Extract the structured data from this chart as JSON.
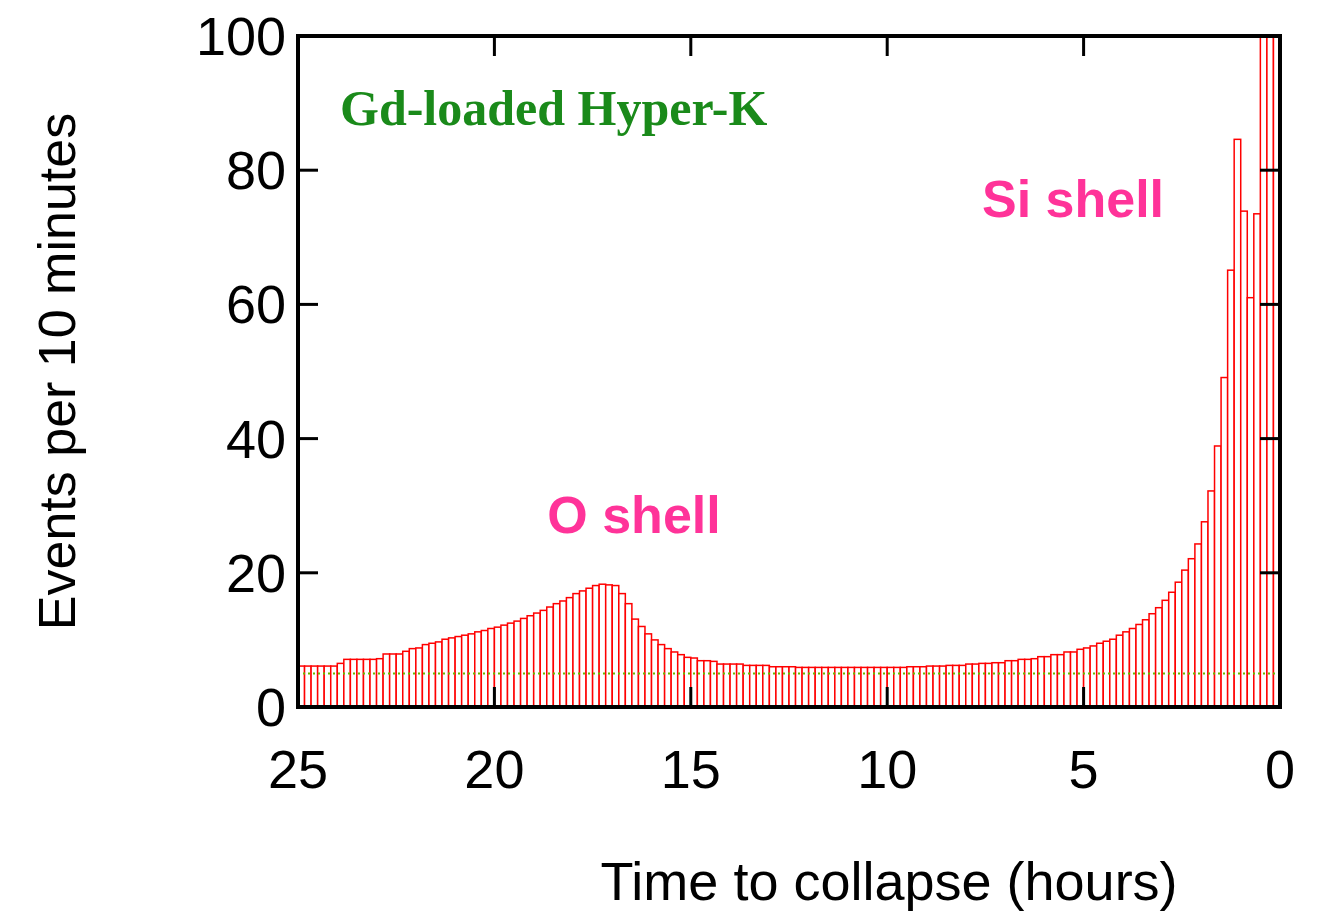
{
  "chart_data": {
    "type": "histogram",
    "xlabel": "Time to collapse (hours)",
    "ylabel": "Events per 10 minutes",
    "annotations": [
      "Gd-loaded Hyper-K",
      "O shell",
      "Si shell"
    ],
    "color": "#ff0000",
    "bins": [
      25,
      24.8333,
      24.6667,
      24.5,
      24.3333,
      24.1667,
      24,
      23.8333,
      23.6667,
      23.5,
      23.3333,
      23.1667,
      23,
      22.8333,
      22.6667,
      22.5,
      22.3333,
      22.1667,
      22,
      21.8333,
      21.6667,
      21.5,
      21.3333,
      21.1667,
      21,
      20.8333,
      20.6667,
      20.5,
      20.3333,
      20.1667,
      20,
      19.8333,
      19.6667,
      19.5,
      19.3333,
      19.1667,
      19,
      18.8333,
      18.6667,
      18.5,
      18.3333,
      18.1667,
      18,
      17.8333,
      17.6667,
      17.5,
      17.3333,
      17.1667,
      17,
      16.8333,
      16.6667,
      16.5,
      16.3333,
      16.1667,
      16,
      15.8333,
      15.6667,
      15.5,
      15.3333,
      15.1667,
      15,
      14.8333,
      14.6667,
      14.5,
      14.3333,
      14.1667,
      14,
      13.8333,
      13.6667,
      13.5,
      13.3333,
      13.1667,
      13,
      12.8333,
      12.6667,
      12.5,
      12.3333,
      12.1667,
      12,
      11.8333,
      11.6667,
      11.5,
      11.3333,
      11.1667,
      11,
      10.8333,
      10.6667,
      10.5,
      10.3333,
      10.1667,
      10,
      9.8333,
      9.6667,
      9.5,
      9.3333,
      9.1667,
      9,
      8.8333,
      8.6667,
      8.5,
      8.3333,
      8.1667,
      8,
      7.8333,
      7.6667,
      7.5,
      7.3333,
      7.1667,
      7,
      6.8333,
      6.6667,
      6.5,
      6.3333,
      6.1667,
      6,
      5.8333,
      5.6667,
      5.5,
      5.3333,
      5.1667,
      5,
      4.8333,
      4.6667,
      4.5,
      4.3333,
      4.1667,
      4,
      3.8333,
      3.6667,
      3.5,
      3.3333,
      3.1667,
      3,
      2.8333,
      2.6667,
      2.5,
      2.3333,
      2.1667,
      2,
      1.8333,
      1.6667,
      1.5,
      1.3333,
      1.1667,
      1,
      0.8333,
      0.6667,
      0.5,
      0.3333,
      0.1667,
      0
    ],
    "values": [
      6.1,
      6.1,
      6.1,
      6.1,
      6.1,
      6.1,
      6.5,
      7.1,
      7.1,
      7.1,
      7.1,
      7.1,
      7.2,
      7.9,
      7.9,
      7.9,
      8.3,
      8.7,
      8.8,
      9.3,
      9.5,
      9.7,
      10.1,
      10.3,
      10.5,
      10.7,
      10.9,
      11.2,
      11.4,
      11.7,
      11.9,
      12.2,
      12.5,
      12.8,
      13.2,
      13.6,
      14.0,
      14.4,
      14.9,
      15.4,
      15.8,
      16.3,
      16.9,
      17.3,
      17.7,
      18.1,
      18.3,
      18.2,
      18.1,
      16.9,
      15.4,
      13.1,
      12.0,
      10.9,
      10.0,
      9.3,
      8.7,
      8.2,
      7.8,
      7.4,
      7.3,
      6.9,
      6.9,
      6.8,
      6.4,
      6.4,
      6.4,
      6.4,
      6.2,
      6.2,
      6.2,
      6.2,
      6.0,
      6.0,
      6.0,
      6.0,
      5.9,
      5.9,
      5.9,
      5.9,
      5.9,
      5.9,
      5.9,
      5.9,
      5.9,
      5.9,
      5.9,
      5.9,
      5.9,
      5.9,
      5.9,
      5.9,
      5.9,
      6.0,
      6.0,
      6.0,
      6.1,
      6.1,
      6.1,
      6.2,
      6.2,
      6.2,
      6.4,
      6.4,
      6.5,
      6.5,
      6.6,
      6.6,
      6.9,
      6.9,
      7.1,
      7.1,
      7.2,
      7.5,
      7.5,
      7.8,
      7.8,
      8.2,
      8.2,
      8.6,
      8.8,
      9.1,
      9.5,
      9.8,
      10.1,
      10.7,
      11.2,
      11.7,
      12.3,
      13.0,
      13.9,
      14.8,
      15.9,
      17.1,
      18.6,
      20.4,
      22.1,
      24.3,
      27.6,
      32.2,
      38.9,
      49.1,
      65.1,
      84.6,
      73.9,
      61.0,
      73.5,
      100,
      100,
      100
    ],
    "xlim": [
      25,
      0
    ],
    "ylim": [
      0,
      100
    ],
    "xticks": [
      25,
      20,
      15,
      10,
      5,
      0
    ],
    "yticks": [
      0,
      20,
      40,
      60,
      80,
      100
    ],
    "ref_lines": [
      {
        "axis": "y",
        "value": 5,
        "color": "#66bb00",
        "line_style": "dotted"
      }
    ],
    "grid": false
  }
}
